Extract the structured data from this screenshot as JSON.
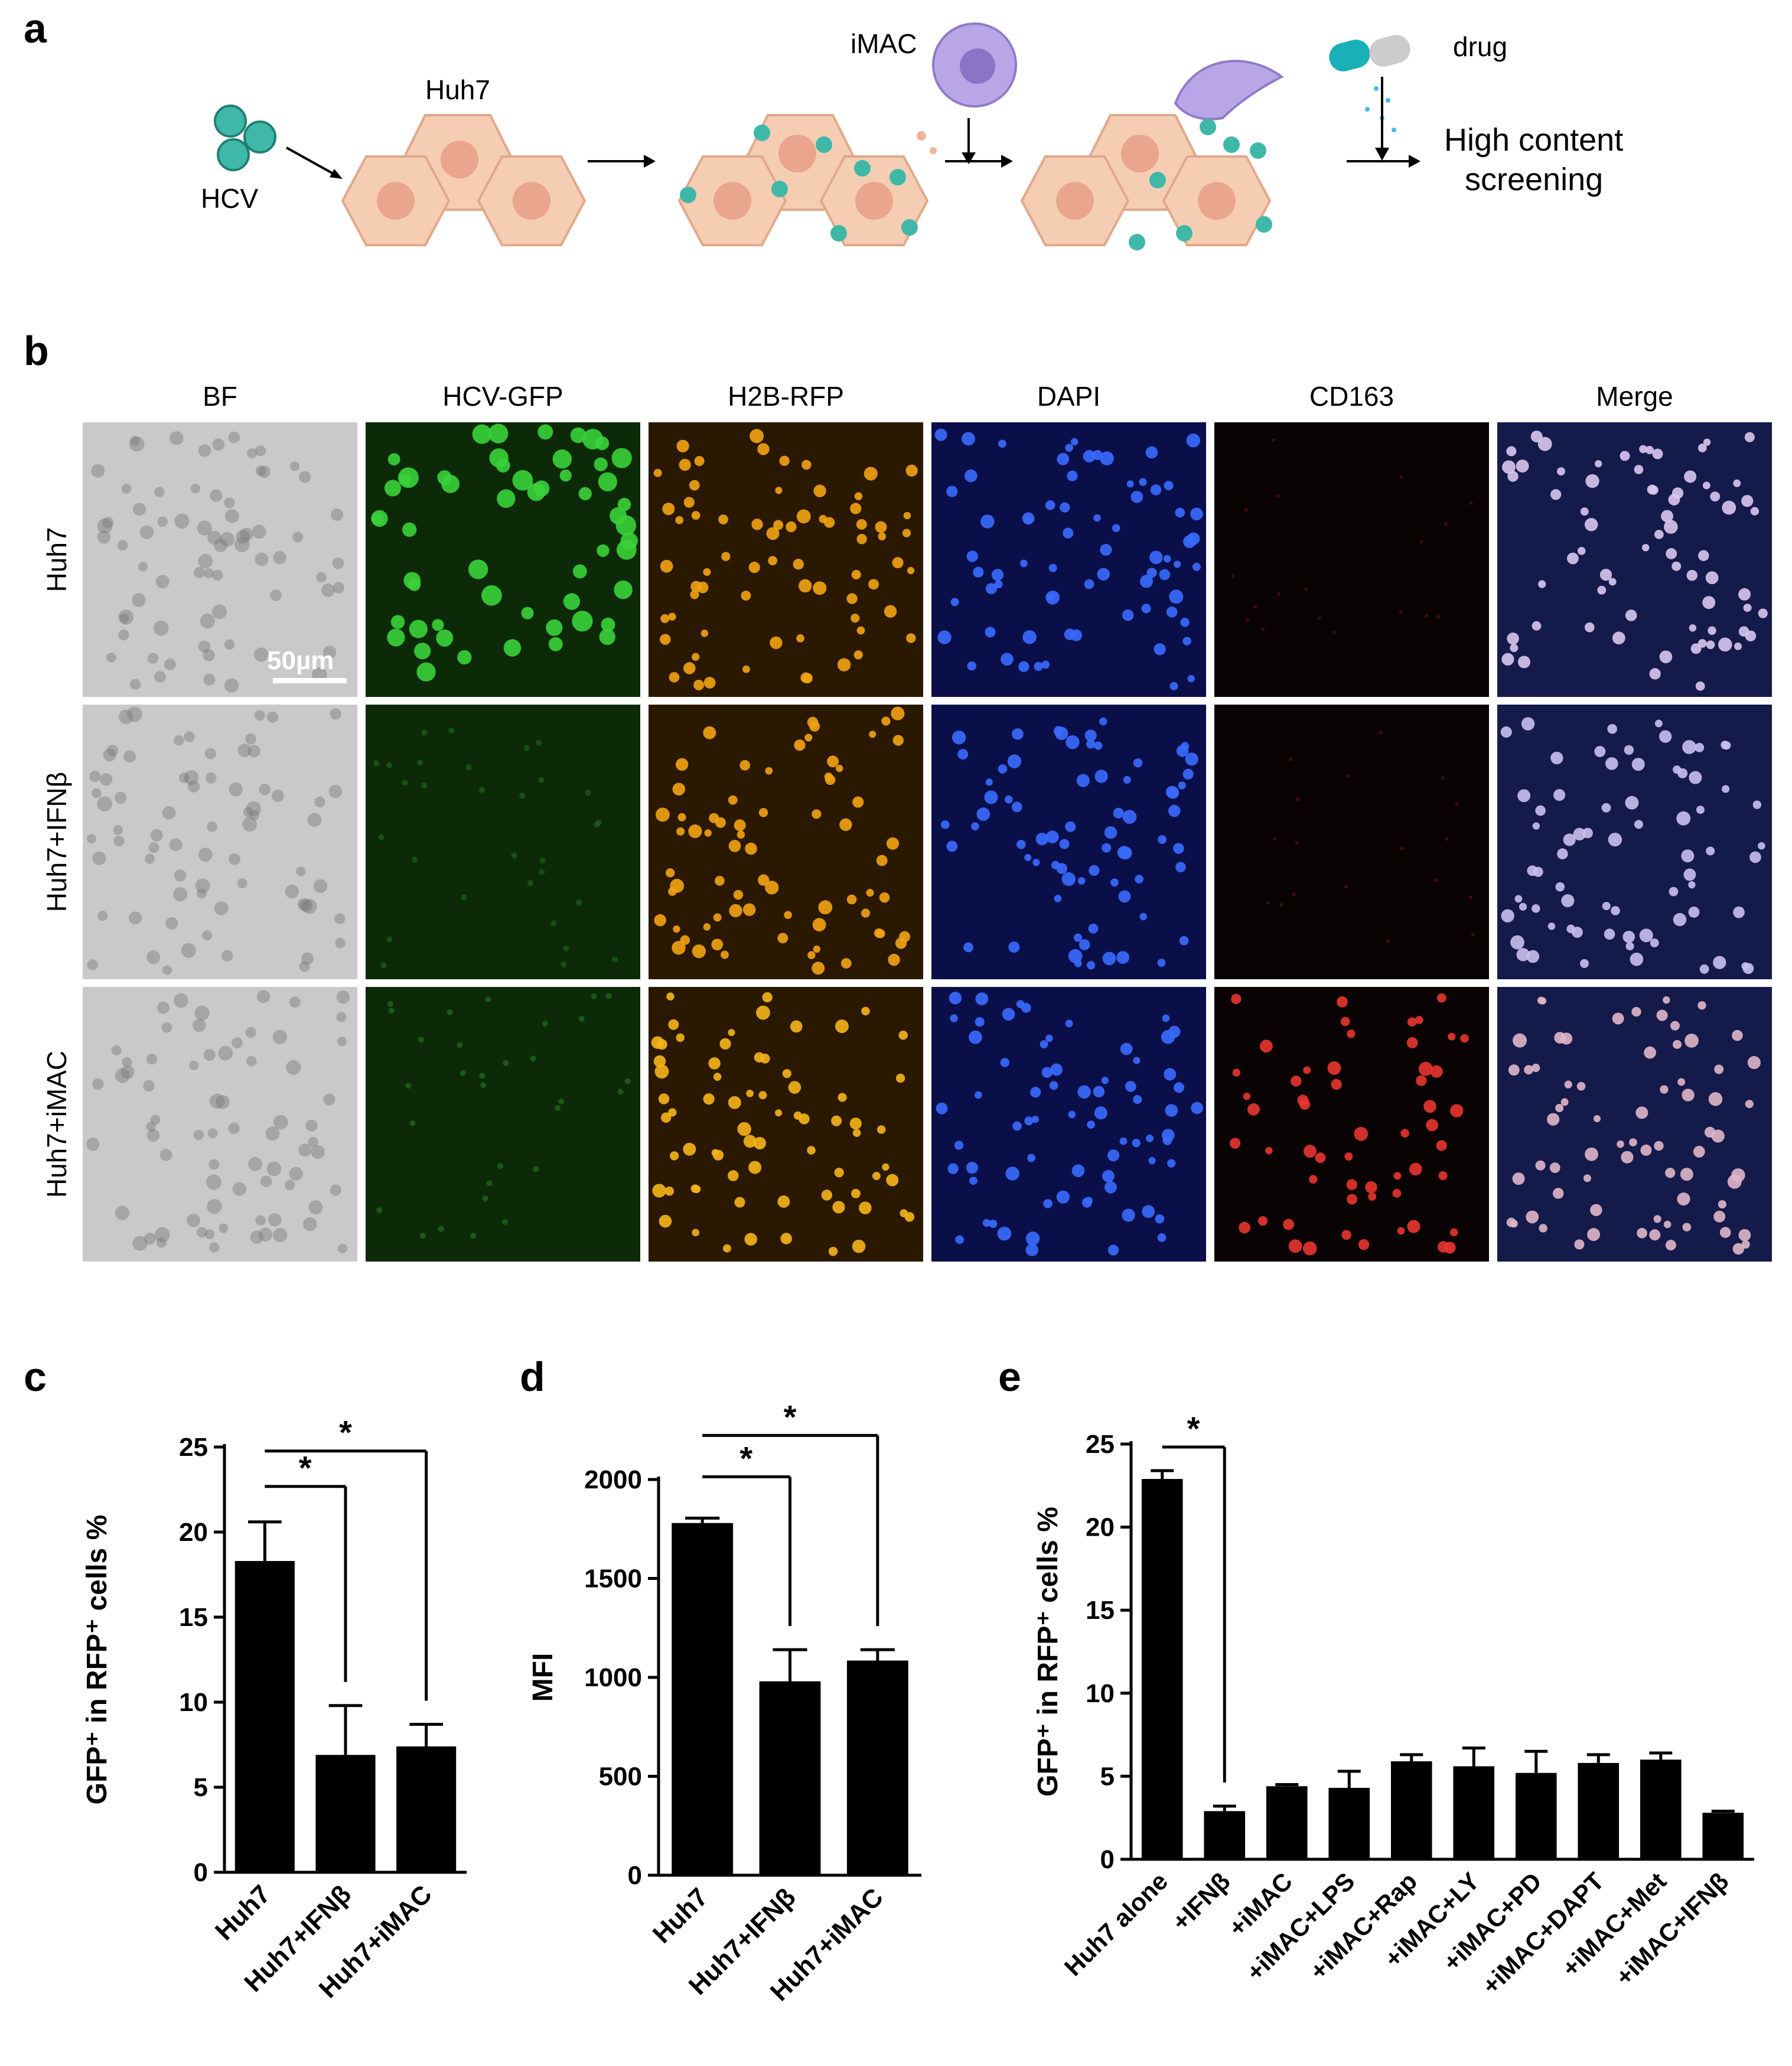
{
  "panel_letters": {
    "a": "a",
    "b": "b",
    "c": "c",
    "d": "d",
    "e": "e"
  },
  "schematic": {
    "hcv_label": "HCV",
    "huh7_label": "Huh7",
    "imac_label": "iMAC",
    "drug_label": "drug",
    "screening_line1": "High content",
    "screening_line2": "screening"
  },
  "microscopy": {
    "columns": [
      "BF",
      "HCV-GFP",
      "H2B-RFP",
      "DAPI",
      "CD163",
      "Merge"
    ],
    "rows": [
      "Huh7",
      "Huh7+IFNβ",
      "Huh7+iMAC"
    ],
    "scale_bar": "50µm"
  },
  "colors": {
    "bf": "#c9c9c9",
    "gfp": "#0c2a08",
    "rfp": "#2a1800",
    "dapi": "#0a0f4a",
    "cd163": "#0a0303",
    "merge": "#141a4a",
    "cell_fill": "#f5cdb3",
    "cell_stroke": "#e0a88a",
    "virus": "#3fb8a8",
    "macrophage": "#b9a6e6"
  },
  "chart_data": [
    {
      "panel": "c",
      "type": "bar",
      "categories": [
        "Huh7",
        "Huh7+IFNβ",
        "Huh7+iMAC"
      ],
      "values": [
        18.3,
        6.9,
        7.4
      ],
      "errors": [
        2.3,
        2.9,
        1.3
      ],
      "ylabel": "GFP⁺ in RFP⁺ cells %",
      "ylim": [
        0,
        25
      ],
      "yticks": [
        0,
        5,
        10,
        15,
        20,
        25
      ],
      "significance": [
        {
          "from": 0,
          "to": 1,
          "label": "*"
        },
        {
          "from": 0,
          "to": 2,
          "label": "*"
        }
      ]
    },
    {
      "panel": "d",
      "type": "bar",
      "categories": [
        "Huh7",
        "Huh7+IFNβ",
        "Huh7+iMAC"
      ],
      "values": [
        1780,
        980,
        1085
      ],
      "errors": [
        25,
        160,
        55
      ],
      "ylabel": "MFI",
      "ylim": [
        0,
        2000
      ],
      "yticks": [
        0,
        500,
        1000,
        1500,
        2000
      ],
      "significance": [
        {
          "from": 0,
          "to": 1,
          "label": "*"
        },
        {
          "from": 0,
          "to": 2,
          "label": "*"
        }
      ]
    },
    {
      "panel": "e",
      "type": "bar",
      "categories": [
        "Huh7 alone",
        "+IFNβ",
        "+iMAC",
        "+iMAC+LPS",
        "+iMAC+Rap",
        "+iMAC+LY",
        "+iMAC+PD",
        "+iMAC+DAPT",
        "+iMAC+Met",
        "+iMAC+IFNβ"
      ],
      "values": [
        22.9,
        2.9,
        4.4,
        4.3,
        5.9,
        5.6,
        5.2,
        5.8,
        6.0,
        2.8
      ],
      "errors": [
        0.5,
        0.3,
        0.1,
        1.0,
        0.4,
        1.1,
        1.3,
        0.5,
        0.4,
        0.1
      ],
      "ylabel": "GFP⁺ in RFP⁺ cells %",
      "ylim": [
        0,
        25
      ],
      "yticks": [
        0,
        5,
        10,
        15,
        20,
        25
      ],
      "significance": [
        {
          "from": 0,
          "to": 1,
          "label": "*"
        }
      ]
    }
  ]
}
